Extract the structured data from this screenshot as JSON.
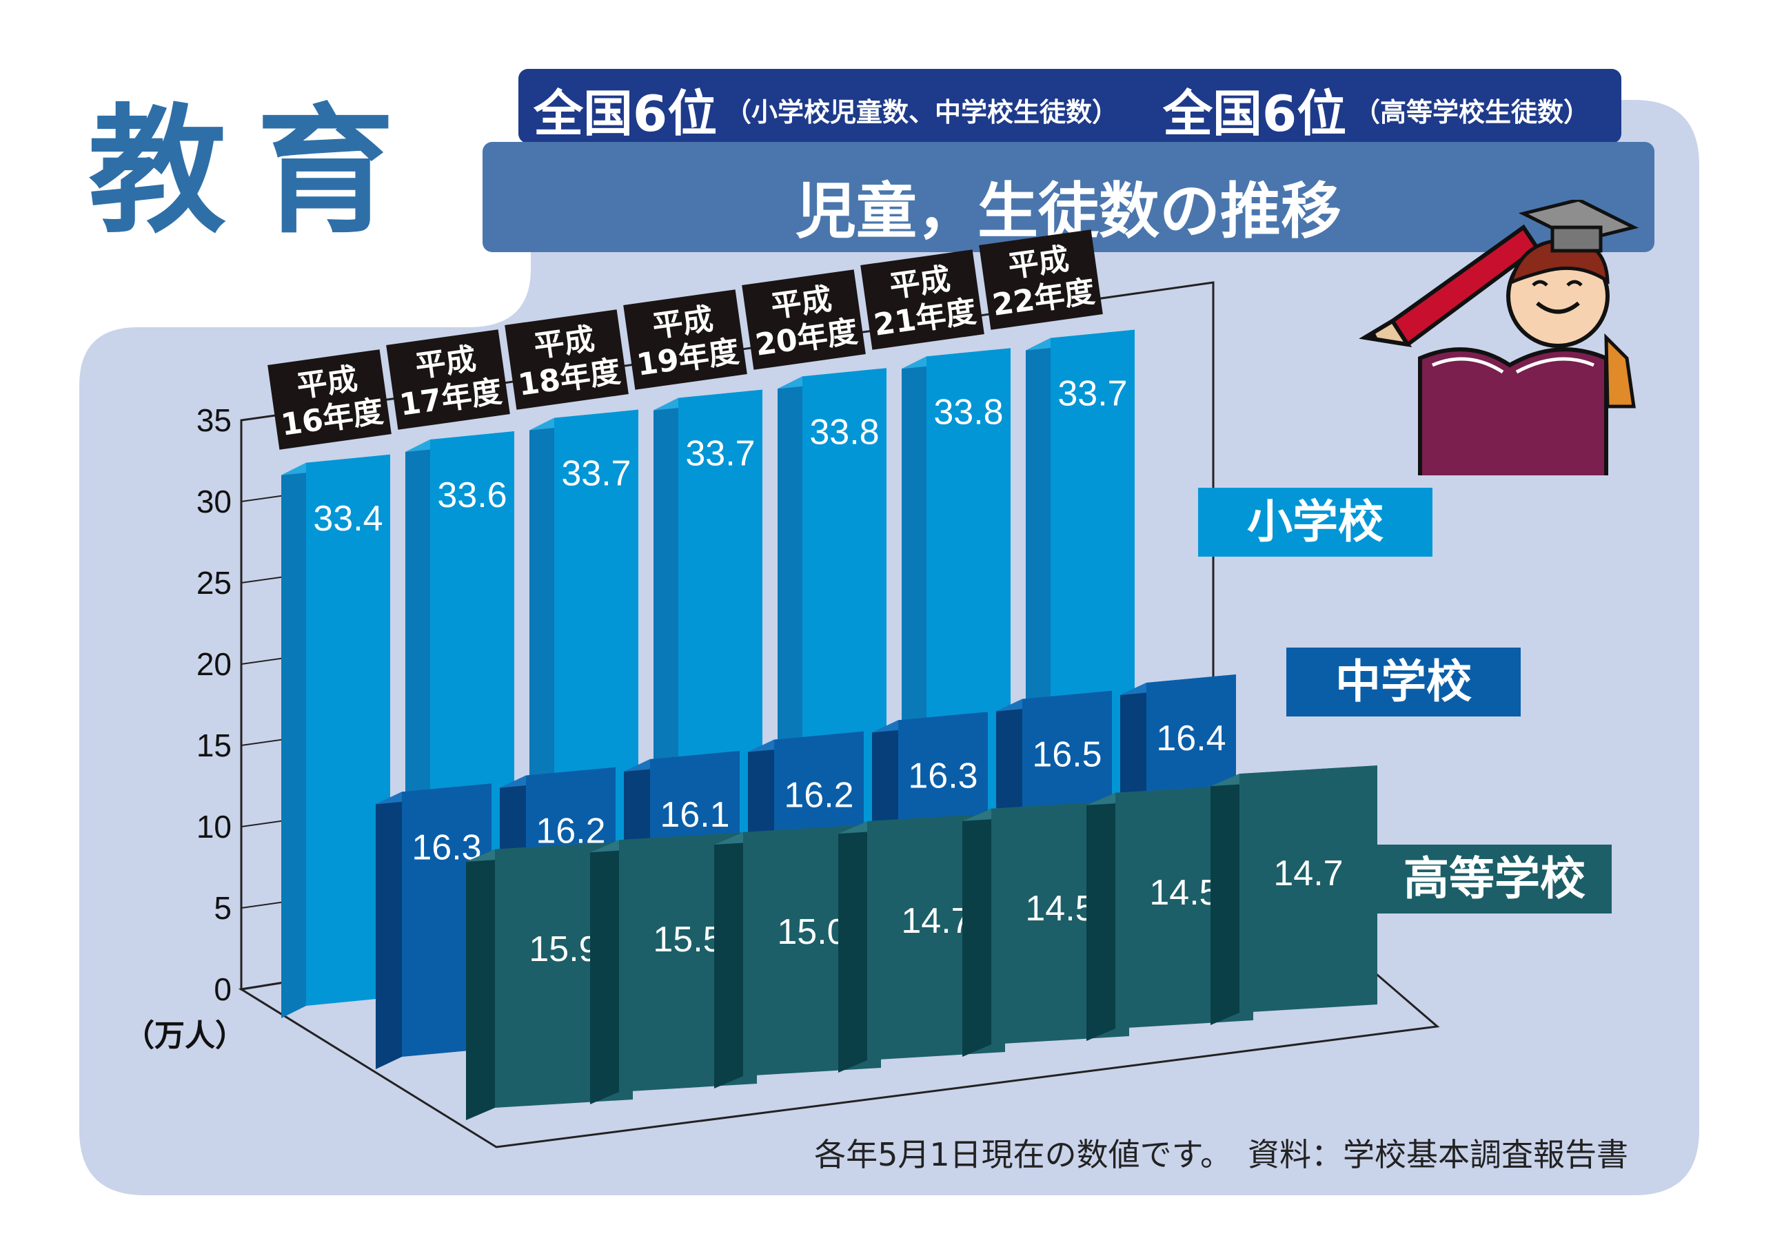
{
  "section_title": "教育",
  "rank": {
    "left_main": "全国6位",
    "left_sub": "（小学校児童数、中学校生徒数）",
    "right_main": "全国6位",
    "right_sub": "（高等学校生徒数）"
  },
  "note": "各年5月1日現在の数値です。　資料：学校基本調査報告書",
  "colors": {
    "elementary": "#0396d6",
    "junior": "#0a5ea8",
    "high": "#1c5f68",
    "title_bar": "#4a76ad",
    "rank_bar": "#1e3a8a",
    "heading": "#2e6fa8",
    "panel": "#c9d3ea"
  },
  "chart_data": {
    "type": "bar",
    "title": "児童，生徒数の推移",
    "ylabel": "（万人）",
    "ylim": [
      0,
      35
    ],
    "yticks": [
      "0",
      "5",
      "10",
      "15",
      "20",
      "25",
      "30",
      "35"
    ],
    "categories": [
      "平成16年度",
      "平成17年度",
      "平成18年度",
      "平成19年度",
      "平成20年度",
      "平成21年度",
      "平成22年度"
    ],
    "category_lines": [
      [
        "平成",
        "16年度"
      ],
      [
        "平成",
        "17年度"
      ],
      [
        "平成",
        "18年度"
      ],
      [
        "平成",
        "19年度"
      ],
      [
        "平成",
        "20年度"
      ],
      [
        "平成",
        "21年度"
      ],
      [
        "平成",
        "22年度"
      ]
    ],
    "series": [
      {
        "name": "小学校",
        "values": [
          33.4,
          33.6,
          33.7,
          33.7,
          33.8,
          33.8,
          33.7
        ]
      },
      {
        "name": "中学校",
        "values": [
          16.3,
          16.2,
          16.1,
          16.2,
          16.3,
          16.5,
          16.4
        ]
      },
      {
        "name": "高等学校",
        "values": [
          15.9,
          15.5,
          15.0,
          14.7,
          14.5,
          14.5,
          14.7
        ]
      }
    ],
    "legend": "right"
  }
}
